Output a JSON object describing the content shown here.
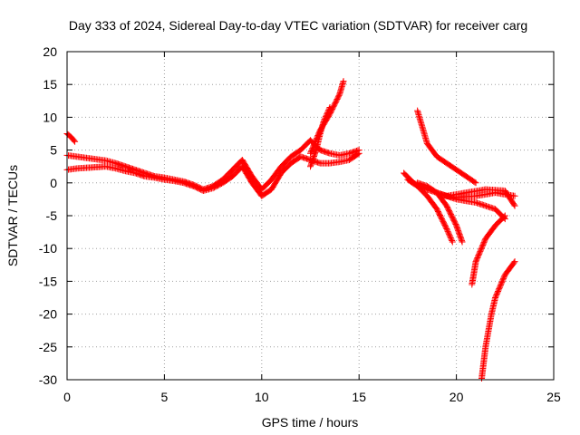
{
  "chart_data": {
    "type": "scatter",
    "title": "Day 333 of 2024, Sidereal Day-to-day VTEC variation (SDTVAR) for receiver carg",
    "xlabel": "GPS time / hours",
    "ylabel": "SDTVAR / TECUs",
    "xlim": [
      0,
      25
    ],
    "ylim": [
      -30,
      20
    ],
    "xticks": [
      0,
      5,
      10,
      15,
      20,
      25
    ],
    "yticks": [
      -30,
      -25,
      -20,
      -15,
      -10,
      -5,
      0,
      5,
      10,
      15,
      20
    ],
    "grid": true,
    "legend": "none",
    "marker": "+",
    "color": "#ff0000",
    "series": [
      {
        "x": [
          0.0,
          0.2,
          0.4
        ],
        "y": [
          7.5,
          7.0,
          6.3
        ]
      },
      {
        "x": [
          0.0,
          0.5,
          1.0,
          1.5,
          2.0,
          2.5,
          3.0,
          3.5,
          4.0,
          4.5,
          5.0,
          5.5,
          6.0,
          6.5,
          7.0,
          7.5,
          8.0,
          8.5,
          9.0,
          9.5,
          10.0,
          10.5,
          11.0,
          11.5,
          12.0,
          12.5,
          13.0,
          13.5,
          14.0,
          14.5,
          15.0
        ],
        "y": [
          4.2,
          4.0,
          3.8,
          3.6,
          3.4,
          3.0,
          2.5,
          2.0,
          1.5,
          1.0,
          0.8,
          0.5,
          0.2,
          -0.3,
          -1.0,
          -0.5,
          0.5,
          2.0,
          3.5,
          1.0,
          -1.0,
          0.5,
          2.5,
          4.0,
          5.0,
          6.5,
          5.0,
          4.5,
          4.2,
          4.5,
          5.0
        ]
      },
      {
        "x": [
          0.0,
          0.5,
          1.0,
          1.5,
          2.0,
          2.5,
          3.0,
          3.5,
          4.0,
          4.5,
          5.0,
          5.5,
          6.0,
          6.5,
          7.0,
          7.5,
          8.0,
          8.5,
          9.0,
          9.5,
          10.0,
          10.5,
          11.0,
          11.5,
          12.0,
          12.5,
          13.0,
          13.5,
          14.0,
          14.5,
          15.0
        ],
        "y": [
          2.0,
          2.2,
          2.3,
          2.4,
          2.5,
          2.2,
          1.8,
          1.5,
          1.0,
          0.8,
          0.5,
          0.3,
          0.0,
          -0.5,
          -1.2,
          -0.8,
          0.0,
          1.0,
          2.5,
          0.0,
          -2.0,
          -1.0,
          1.5,
          3.0,
          4.0,
          3.5,
          3.0,
          3.0,
          3.2,
          3.5,
          4.5
        ]
      },
      {
        "x": [
          12.5,
          13.0,
          13.5,
          14.0,
          14.2
        ],
        "y": [
          4.5,
          8.0,
          10.5,
          13.5,
          15.5
        ]
      },
      {
        "x": [
          12.5,
          12.8,
          13.0,
          13.2,
          13.5
        ],
        "y": [
          2.5,
          5.0,
          7.5,
          9.5,
          11.5
        ]
      },
      {
        "x": [
          18.0,
          18.5,
          19.0,
          19.5,
          20.0,
          20.5,
          21.0
        ],
        "y": [
          11.0,
          6.0,
          4.0,
          3.0,
          2.0,
          1.0,
          0.0
        ]
      },
      {
        "x": [
          17.3,
          17.8,
          18.5,
          19.0,
          19.5,
          20.0,
          21.0,
          22.0,
          23.0
        ],
        "y": [
          1.5,
          0.0,
          -1.0,
          -1.5,
          -2.0,
          -2.2,
          -2.0,
          -1.5,
          -2.0
        ]
      },
      {
        "x": [
          17.5,
          18.0,
          18.5,
          19.0,
          19.5,
          19.8
        ],
        "y": [
          0.5,
          -0.5,
          -2.0,
          -4.0,
          -7.0,
          -9.0
        ]
      },
      {
        "x": [
          18.0,
          18.5,
          19.0,
          19.5,
          20.0,
          20.3
        ],
        "y": [
          0.0,
          -0.5,
          -1.5,
          -3.5,
          -6.5,
          -9.0
        ]
      },
      {
        "x": [
          19.0,
          20.0,
          21.0,
          22.0,
          22.5
        ],
        "y": [
          -1.5,
          -2.5,
          -3.0,
          -4.0,
          -5.5
        ]
      },
      {
        "x": [
          20.8,
          21.0,
          21.5,
          22.0,
          22.5
        ],
        "y": [
          -15.5,
          -12.0,
          -8.5,
          -6.5,
          -5.0
        ]
      },
      {
        "x": [
          21.3,
          21.5,
          21.8,
          22.0,
          22.5,
          23.0
        ],
        "y": [
          -29.8,
          -25.0,
          -20.0,
          -17.5,
          -14.0,
          -12.0
        ]
      },
      {
        "x": [
          19.5,
          20.5,
          21.5,
          22.5,
          23.0
        ],
        "y": [
          -2.0,
          -1.5,
          -1.0,
          -1.2,
          -3.5
        ]
      }
    ]
  }
}
